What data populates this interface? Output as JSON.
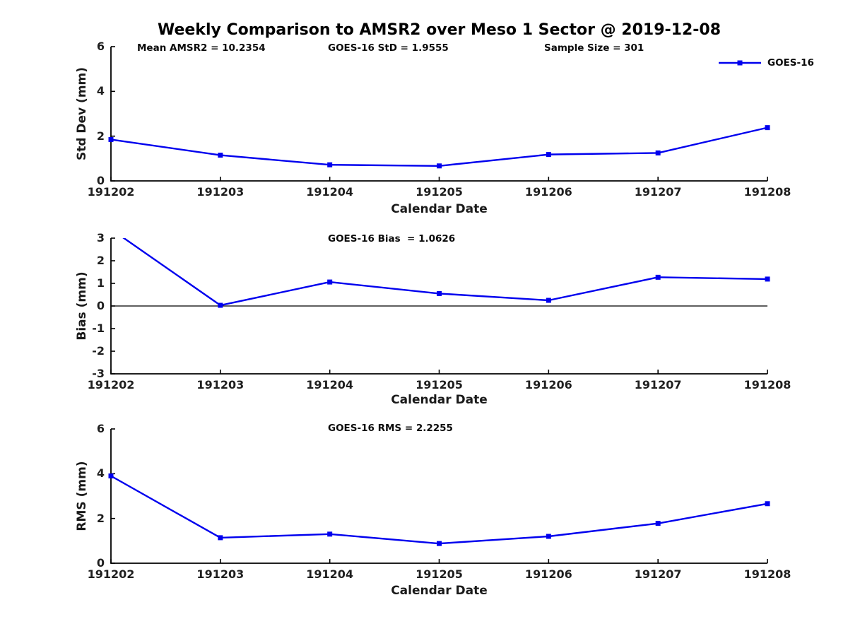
{
  "figure": {
    "title": "Weekly Comparison to AMSR2 over Meso 1 Sector @ 2019-12-08",
    "xlabel": "Calendar Date",
    "line_color": "#0000EE",
    "marker_shape": "square",
    "spine_color": "#000000",
    "text_color": "#1a1a1a",
    "background_color": "#ffffff"
  },
  "chart_data": [
    {
      "type": "line",
      "title": "",
      "categories": [
        "191202",
        "191203",
        "191204",
        "191205",
        "191206",
        "191207",
        "191208"
      ],
      "series": [
        {
          "name": "GOES-16",
          "values": [
            1.85,
            1.15,
            0.72,
            0.67,
            1.18,
            1.25,
            2.38
          ]
        }
      ],
      "xlabel": "Calendar Date",
      "ylabel": "Std Dev (mm)",
      "ylim": [
        0,
        6
      ],
      "yticks": [
        0,
        2,
        4,
        6
      ],
      "grid": false,
      "zero_line": false,
      "annotations": [
        "Mean AMSR2 = 10.2354",
        "GOES-16 StD = 1.9555",
        "Sample Size = 301"
      ],
      "legend": {
        "entries": [
          "GOES-16"
        ],
        "position": "top-right"
      }
    },
    {
      "type": "line",
      "title": "",
      "categories": [
        "191202",
        "191203",
        "191204",
        "191205",
        "191206",
        "191207",
        "191208"
      ],
      "series": [
        {
          "name": "GOES-16",
          "values": [
            3.4,
            0.03,
            1.06,
            0.55,
            0.25,
            1.27,
            1.19
          ]
        }
      ],
      "xlabel": "Calendar Date",
      "ylabel": "Bias (mm)",
      "ylim": [
        -3,
        3
      ],
      "yticks": [
        -3,
        -2,
        -1,
        0,
        1,
        2,
        3
      ],
      "grid": false,
      "zero_line": true,
      "clip_to_ylim": true,
      "annotations": [
        "GOES-16 Bias  = 1.0626"
      ],
      "legend": null
    },
    {
      "type": "line",
      "title": "",
      "categories": [
        "191202",
        "191203",
        "191204",
        "191205",
        "191206",
        "191207",
        "191208"
      ],
      "series": [
        {
          "name": "GOES-16",
          "values": [
            3.9,
            1.14,
            1.3,
            0.88,
            1.2,
            1.78,
            2.66
          ]
        }
      ],
      "xlabel": "Calendar Date",
      "ylabel": "RMS (mm)",
      "ylim": [
        0,
        6
      ],
      "yticks": [
        0,
        2,
        4,
        6
      ],
      "grid": false,
      "zero_line": false,
      "annotations": [
        "GOES-16 RMS = 2.2255"
      ],
      "legend": null
    }
  ]
}
